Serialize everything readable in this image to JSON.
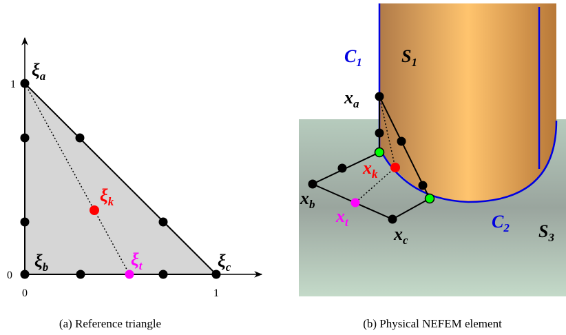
{
  "left": {
    "axis_labels": {
      "y_top": "1",
      "y_bottom": "0",
      "x_left": "0",
      "x_right": "1"
    },
    "labels": [
      {
        "symbol": "ξ",
        "sub": "a"
      },
      {
        "symbol": "ξ",
        "sub": "k"
      },
      {
        "symbol": "ξ",
        "sub": "t"
      },
      {
        "symbol": "ξ",
        "sub": "b"
      },
      {
        "symbol": "ξ",
        "sub": "c"
      }
    ],
    "caption": "(a) Reference triangle"
  },
  "right": {
    "labels": [
      {
        "symbol": "C",
        "sub": "1"
      },
      {
        "symbol": "S",
        "sub": "1"
      },
      {
        "symbol": "x",
        "sub": "a"
      },
      {
        "symbol": "x",
        "sub": "k"
      },
      {
        "symbol": "x",
        "sub": "b"
      },
      {
        "symbol": "x",
        "sub": "t"
      },
      {
        "symbol": "x",
        "sub": "c"
      },
      {
        "symbol": "C",
        "sub": "2"
      },
      {
        "symbol": "S",
        "sub": "3"
      }
    ],
    "caption": "(b) Physical NEFEM element"
  }
}
